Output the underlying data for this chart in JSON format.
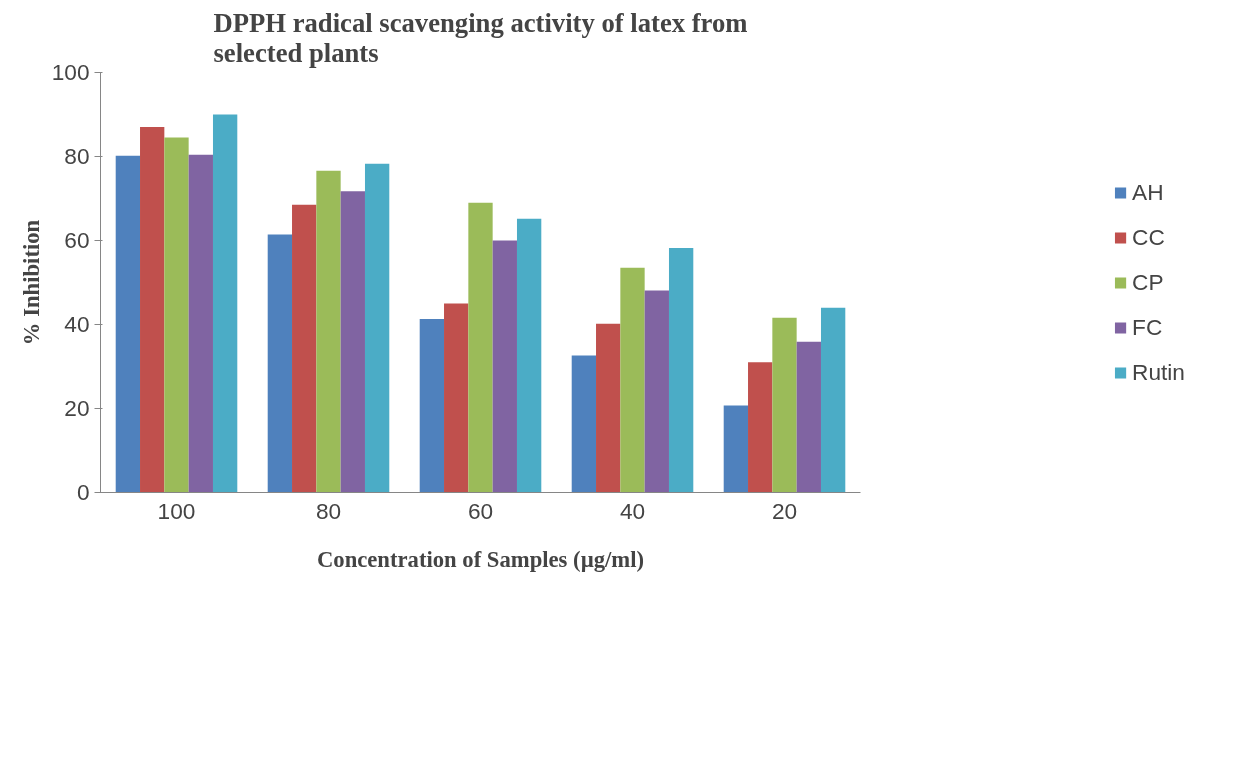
{
  "chart_data": {
    "type": "bar",
    "title": "DPPH radical scavenging activity of latex from selected plants",
    "xlabel": "Concentration of Samples (µg/ml)",
    "ylabel": "% Inhibition",
    "categories": [
      "100",
      "80",
      "60",
      "40",
      "20"
    ],
    "series": [
      {
        "name": "AH",
        "color": "#4f81bd",
        "values": [
          80.2,
          61.4,
          41.3,
          32.6,
          20.7
        ]
      },
      {
        "name": "CC",
        "color": "#c0504d",
        "values": [
          87,
          68.5,
          45,
          40.2,
          31
        ]
      },
      {
        "name": "CP",
        "color": "#9bbb59",
        "values": [
          84.5,
          76.6,
          69,
          53.5,
          41.6
        ]
      },
      {
        "name": "FC",
        "color": "#8064a2",
        "values": [
          80.4,
          71.7,
          60,
          48.1,
          35.9
        ]
      },
      {
        "name": "Rutin",
        "color": "#4bacc6",
        "values": [
          90,
          78.3,
          65.2,
          58.2,
          44
        ]
      }
    ],
    "ylim": [
      0,
      100
    ],
    "yticks": [
      0,
      20,
      40,
      60,
      80,
      100
    ],
    "grid": false,
    "legend": "right"
  }
}
